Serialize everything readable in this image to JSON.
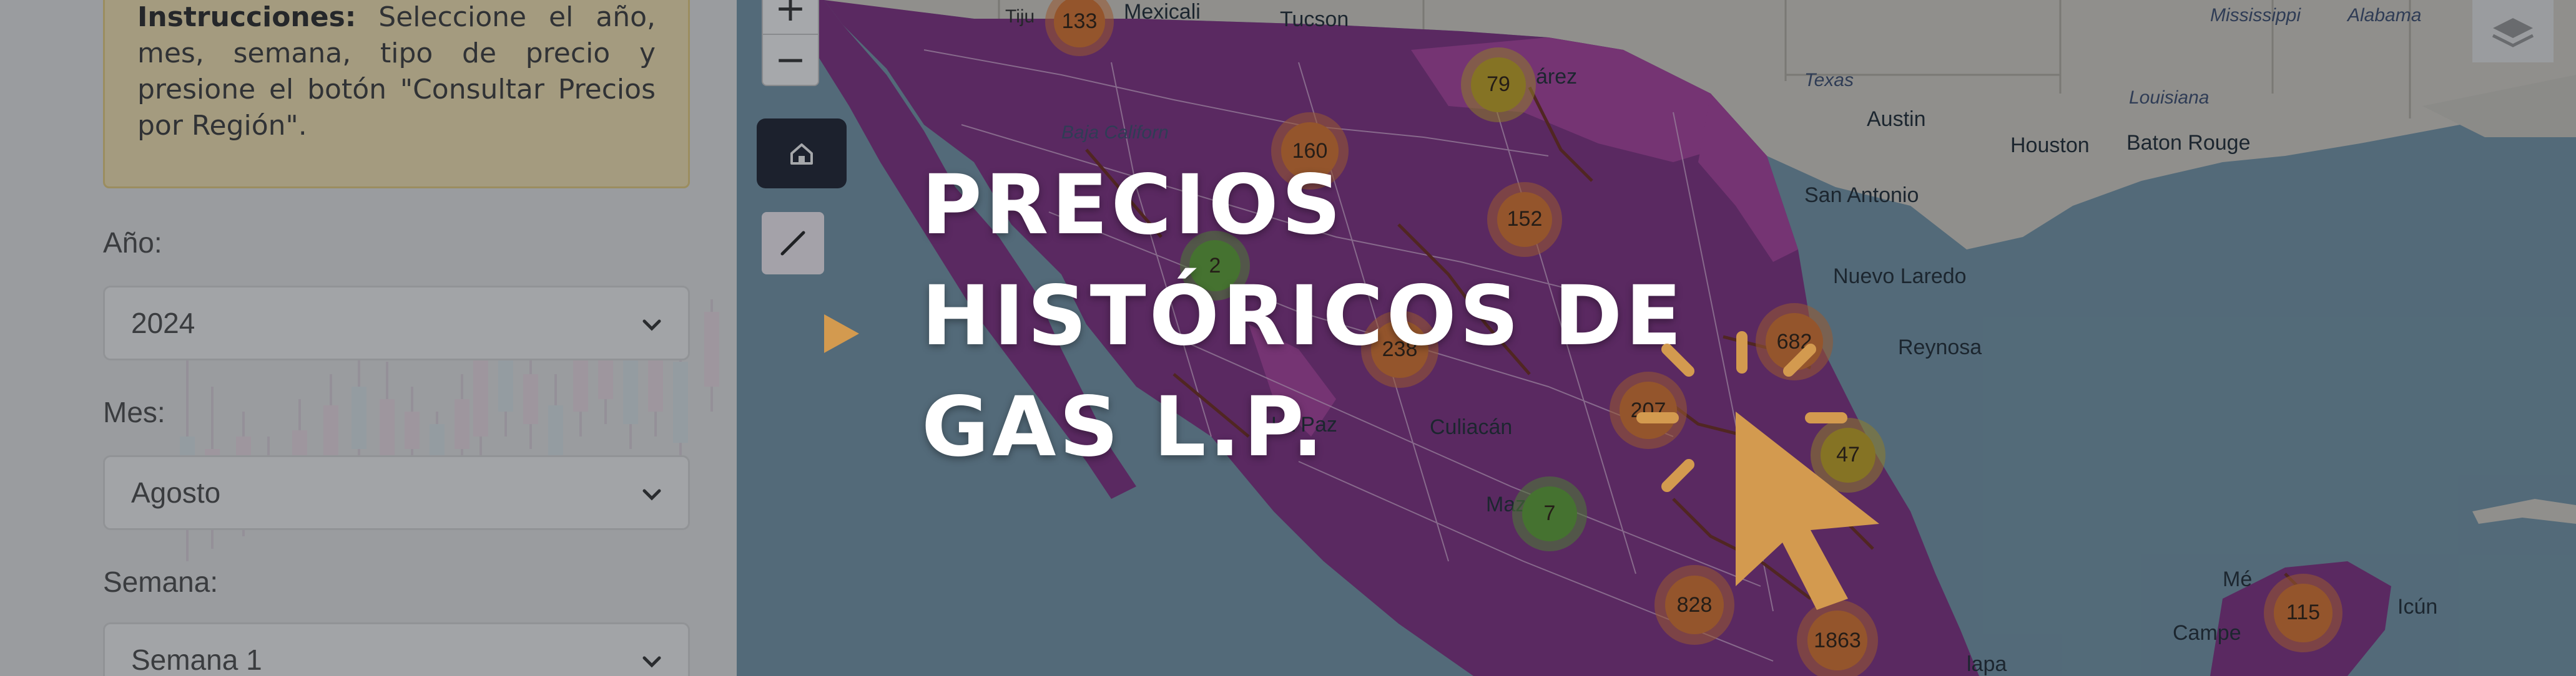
{
  "colors": {
    "accent": "#d39a4f",
    "panel_bg": "#d7d7d7",
    "instructions_bg": "#e6d6a8",
    "region_purple": "#7a2f7c",
    "region_magenta": "#a13e97",
    "cluster_orange": "#cf6f2e",
    "cluster_yellow": "#b99b22",
    "cluster_green": "#5a9a34"
  },
  "instructions": {
    "title": "Instrucciones:",
    "text": " Seleccione el año, mes, semana, tipo de precio y presione el botón \"Consultar Precios por Región\"."
  },
  "filters": {
    "year": {
      "label": "Año:",
      "value": "2024"
    },
    "month": {
      "label": "Mes:",
      "value": "Agosto"
    },
    "week": {
      "label": "Semana:",
      "value": "Semana 1"
    }
  },
  "map_controls": {
    "zoom_in": "+",
    "zoom_out": "−",
    "home_icon": "home-icon",
    "measure_icon": "ruler-icon",
    "layers_icon": "layers-icon"
  },
  "map_labels": {
    "tijuana": "Tiju",
    "mexicali": "Mexicali",
    "tucson": "Tucson",
    "juarez": "árez",
    "texas": "Texas",
    "austin": "Austin",
    "houston": "Houston",
    "louisiana": "Louisiana",
    "baton_rouge": "Baton Rouge",
    "mississippi": "Mississippi",
    "alabama": "Alabama",
    "san_antonio": "San Antonio",
    "nuevo_laredo": "Nuevo Laredo",
    "reynosa": "Reynosa",
    "la_paz": "La Paz",
    "culiacan": "Culiacán",
    "mazatlan": "Maza",
    "baja": "Baja Californ",
    "campeche": "Campe",
    "cancun": "Icún",
    "jalapa": "lapa",
    "merida": "Mé"
  },
  "clusters": [
    {
      "count": "133",
      "tone": "orange"
    },
    {
      "count": "79",
      "tone": "yellow"
    },
    {
      "count": "160",
      "tone": "orange"
    },
    {
      "count": "152",
      "tone": "orange"
    },
    {
      "count": "2",
      "tone": "green"
    },
    {
      "count": "238",
      "tone": "orange"
    },
    {
      "count": "682",
      "tone": "orange"
    },
    {
      "count": "207",
      "tone": "orange"
    },
    {
      "count": "47",
      "tone": "yellow"
    },
    {
      "count": "7",
      "tone": "green"
    },
    {
      "count": "828",
      "tone": "orange"
    },
    {
      "count": "1863",
      "tone": "orange"
    },
    {
      "count": "115",
      "tone": "orange"
    }
  ],
  "hero": {
    "title": "PRECIOS\nHISTÓRICOS DE\nGAS L.P."
  }
}
